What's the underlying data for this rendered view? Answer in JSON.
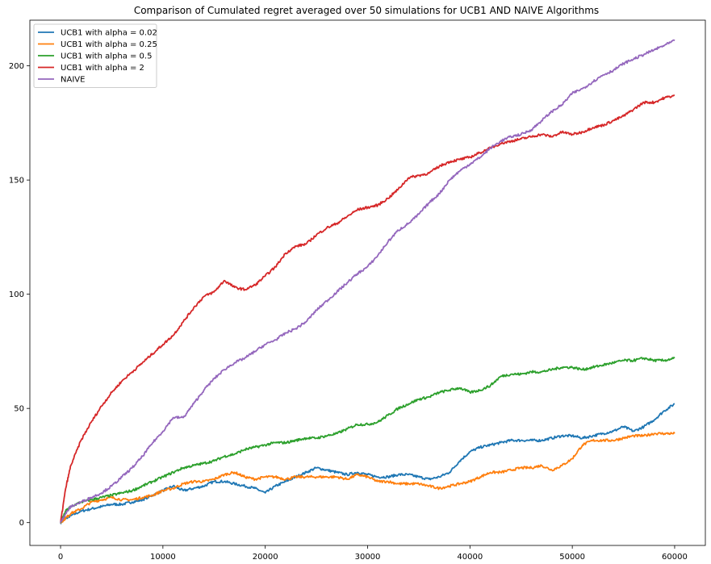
{
  "chart_data": {
    "type": "line",
    "title": "Comparison of Cumulated regret averaged over 50 simulations for UCB1 AND NAIVE Algorithms",
    "xlabel": "",
    "ylabel": "",
    "xlim": [
      -3000,
      63000
    ],
    "ylim": [
      -10,
      220
    ],
    "xticks": [
      0,
      10000,
      20000,
      30000,
      40000,
      50000,
      60000
    ],
    "yticks": [
      0,
      50,
      100,
      150,
      200
    ],
    "grid": false,
    "legend_position": "upper-left",
    "series": [
      {
        "name": "UCB1 with alpha = 0.02",
        "color": "#1f77b4",
        "x": [
          0,
          500,
          1000,
          2000,
          3000,
          4000,
          5000,
          6000,
          7000,
          8000,
          9000,
          10000,
          11000,
          12000,
          13000,
          14000,
          15000,
          16000,
          17000,
          18000,
          19000,
          20000,
          21000,
          22000,
          23000,
          24000,
          25000,
          26000,
          27000,
          28000,
          29000,
          30000,
          31000,
          32000,
          33000,
          34000,
          35000,
          36000,
          37000,
          38000,
          39000,
          40000,
          41000,
          42000,
          43000,
          44000,
          45000,
          46000,
          47000,
          48000,
          49000,
          50000,
          51000,
          52000,
          53000,
          54000,
          55000,
          56000,
          57000,
          58000,
          59000,
          60000
        ],
        "y": [
          0,
          2,
          3,
          5,
          6,
          7,
          8,
          8,
          9,
          10,
          12,
          14,
          16,
          14,
          15,
          16,
          18,
          18,
          17,
          16,
          15,
          13,
          16,
          18,
          20,
          22,
          24,
          23,
          22,
          21,
          22,
          21,
          20,
          20,
          21,
          21,
          20,
          19,
          20,
          22,
          27,
          31,
          33,
          34,
          35,
          36,
          36,
          36,
          36,
          37,
          38,
          38,
          37,
          38,
          39,
          40,
          42,
          40,
          42,
          45,
          49,
          52
        ]
      },
      {
        "name": "UCB1 with alpha = 0.25",
        "color": "#ff7f0e",
        "x": [
          0,
          500,
          1000,
          2000,
          3000,
          4000,
          5000,
          6000,
          7000,
          8000,
          9000,
          10000,
          11000,
          12000,
          13000,
          14000,
          15000,
          16000,
          17000,
          18000,
          19000,
          20000,
          21000,
          22000,
          23000,
          24000,
          25000,
          26000,
          27000,
          28000,
          29000,
          30000,
          31000,
          32000,
          33000,
          34000,
          35000,
          36000,
          37000,
          38000,
          39000,
          40000,
          41000,
          42000,
          43000,
          44000,
          45000,
          46000,
          47000,
          48000,
          49000,
          50000,
          51000,
          52000,
          53000,
          54000,
          55000,
          56000,
          57000,
          58000,
          59000,
          60000
        ],
        "y": [
          0,
          2,
          4,
          6,
          9,
          10,
          11,
          10,
          10,
          11,
          12,
          14,
          15,
          17,
          18,
          18,
          19,
          21,
          22,
          20,
          19,
          20,
          20,
          19,
          20,
          20,
          20,
          20,
          20,
          19,
          21,
          20,
          18,
          18,
          17,
          17,
          17,
          16,
          15,
          16,
          17,
          18,
          20,
          22,
          22,
          23,
          24,
          24,
          25,
          23,
          25,
          28,
          34,
          36,
          36,
          36,
          37,
          38,
          38,
          39,
          39,
          39
        ]
      },
      {
        "name": "UCB1 with alpha = 0.5",
        "color": "#2ca02c",
        "x": [
          0,
          500,
          1000,
          2000,
          3000,
          4000,
          5000,
          6000,
          7000,
          8000,
          9000,
          10000,
          11000,
          12000,
          13000,
          14000,
          15000,
          16000,
          17000,
          18000,
          19000,
          20000,
          21000,
          22000,
          23000,
          24000,
          25000,
          26000,
          27000,
          28000,
          29000,
          30000,
          31000,
          32000,
          33000,
          34000,
          35000,
          36000,
          37000,
          38000,
          39000,
          40000,
          41000,
          42000,
          43000,
          44000,
          45000,
          46000,
          47000,
          48000,
          49000,
          50000,
          51000,
          52000,
          53000,
          54000,
          55000,
          56000,
          57000,
          58000,
          59000,
          60000
        ],
        "y": [
          0,
          5,
          7,
          9,
          10,
          11,
          12,
          13,
          14,
          16,
          18,
          20,
          22,
          24,
          25,
          26,
          27,
          29,
          30,
          32,
          33,
          34,
          35,
          35,
          36,
          37,
          37,
          38,
          39,
          41,
          43,
          43,
          44,
          47,
          50,
          52,
          54,
          55,
          57,
          58,
          59,
          57,
          58,
          60,
          64,
          65,
          65,
          66,
          66,
          67,
          68,
          68,
          67,
          68,
          69,
          70,
          71,
          71,
          72,
          71,
          71,
          72
        ]
      },
      {
        "name": "UCB1 with alpha = 2",
        "color": "#d62728",
        "x": [
          0,
          500,
          1000,
          2000,
          3000,
          4000,
          5000,
          6000,
          7000,
          8000,
          9000,
          10000,
          11000,
          12000,
          13000,
          14000,
          15000,
          16000,
          17000,
          18000,
          19000,
          20000,
          21000,
          22000,
          23000,
          24000,
          25000,
          26000,
          27000,
          28000,
          29000,
          30000,
          31000,
          32000,
          33000,
          34000,
          35000,
          36000,
          37000,
          38000,
          39000,
          40000,
          41000,
          42000,
          43000,
          44000,
          45000,
          46000,
          47000,
          48000,
          49000,
          50000,
          51000,
          52000,
          53000,
          54000,
          55000,
          56000,
          57000,
          58000,
          59000,
          60000
        ],
        "y": [
          0,
          15,
          25,
          36,
          44,
          51,
          57,
          62,
          66,
          70,
          74,
          78,
          82,
          88,
          94,
          99,
          101,
          106,
          103,
          102,
          104,
          108,
          112,
          118,
          121,
          122,
          126,
          129,
          131,
          134,
          137,
          138,
          139,
          142,
          146,
          151,
          152,
          153,
          156,
          158,
          159,
          160,
          162,
          164,
          166,
          167,
          168,
          169,
          170,
          169,
          171,
          170,
          171,
          173,
          174,
          176,
          178,
          181,
          184,
          184,
          186,
          187
        ]
      },
      {
        "name": "NAIVE",
        "color": "#9467bd",
        "x": [
          0,
          500,
          1000,
          2000,
          3000,
          4000,
          5000,
          6000,
          7000,
          8000,
          9000,
          10000,
          11000,
          12000,
          13000,
          14000,
          15000,
          16000,
          17000,
          18000,
          19000,
          20000,
          21000,
          22000,
          23000,
          24000,
          25000,
          26000,
          27000,
          28000,
          29000,
          30000,
          31000,
          32000,
          33000,
          34000,
          35000,
          36000,
          37000,
          38000,
          39000,
          40000,
          41000,
          42000,
          43000,
          44000,
          45000,
          46000,
          47000,
          48000,
          49000,
          50000,
          51000,
          52000,
          53000,
          54000,
          55000,
          56000,
          57000,
          58000,
          59000,
          60000
        ],
        "y": [
          0,
          4,
          7,
          9,
          11,
          13,
          16,
          20,
          24,
          29,
          35,
          40,
          46,
          46,
          52,
          58,
          63,
          67,
          70,
          72,
          75,
          78,
          80,
          83,
          85,
          88,
          93,
          97,
          101,
          105,
          109,
          112,
          117,
          123,
          128,
          131,
          135,
          140,
          144,
          150,
          154,
          157,
          160,
          164,
          167,
          169,
          170,
          172,
          176,
          180,
          183,
          188,
          190,
          193,
          196,
          198,
          201,
          203,
          205,
          207,
          209,
          211
        ]
      }
    ]
  }
}
